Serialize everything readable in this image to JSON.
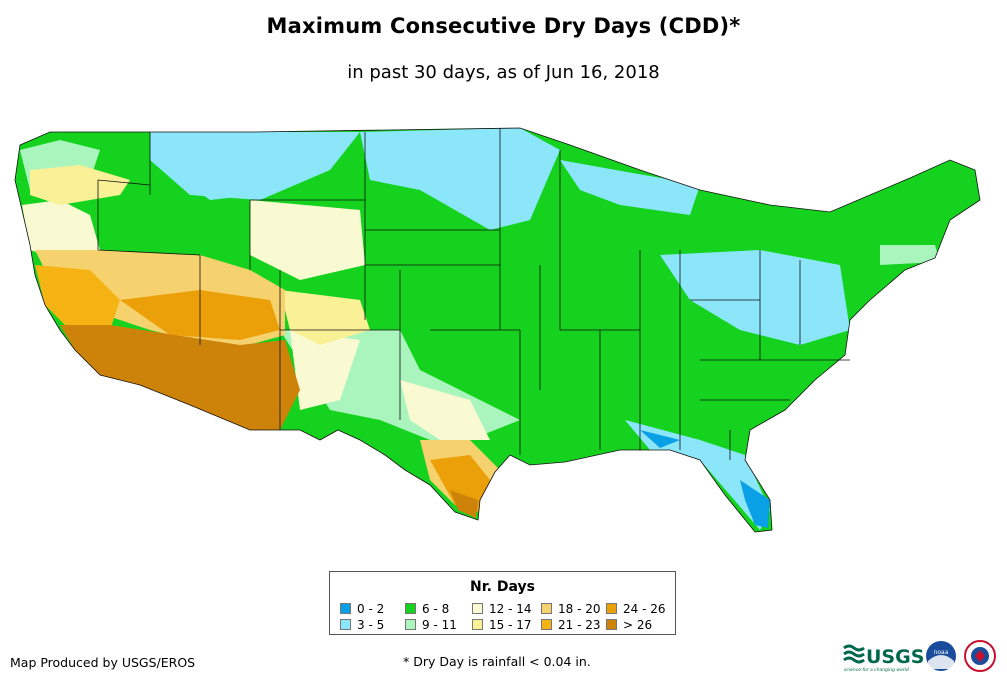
{
  "title": "Maximum Consecutive Dry Days (CDD)*",
  "subtitle": "in past 30 days, as of Jun 16, 2018",
  "legend": {
    "title": "Nr. Days",
    "items": [
      {
        "label": "0 - 2",
        "color": "#0aa0e6"
      },
      {
        "label": "3 - 5",
        "color": "#8ce6fa"
      },
      {
        "label": "6 - 8",
        "color": "#14d21e"
      },
      {
        "label": "9 - 11",
        "color": "#aaf5be"
      },
      {
        "label": "12 - 14",
        "color": "#fafad2"
      },
      {
        "label": "15 - 17",
        "color": "#faf096"
      },
      {
        "label": "18 - 20",
        "color": "#f5d26e"
      },
      {
        "label": "21 - 23",
        "color": "#f5b414"
      },
      {
        "label": "24 - 26",
        "color": "#eba00a"
      },
      {
        "label": "> 26",
        "color": "#cd820a"
      }
    ]
  },
  "credit": "Map Produced by USGS/EROS",
  "footnote": "* Dry Day is rainfall < 0.04 in.",
  "logos": {
    "usgs": "USGS",
    "usgs_tagline": "science for a changing world",
    "noaa": "noaa"
  }
}
